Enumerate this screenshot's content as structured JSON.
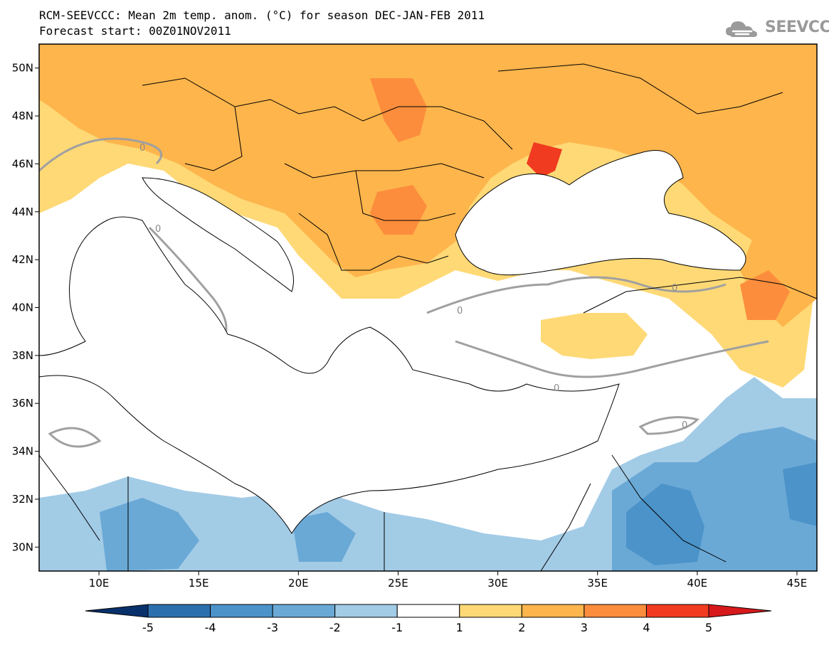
{
  "header": {
    "title_line1": "RCM-SEEVCCC: Mean 2m temp. anom. (°C) for season DEC-JAN-FEB 2011",
    "title_line2": "Forecast start: 00Z01NOV2011",
    "logo_text": "SEEVCCC",
    "logo_icon": "cloud-icon"
  },
  "map": {
    "lat_range": [
      29,
      51
    ],
    "lon_range": [
      7,
      46
    ],
    "lat_labels": [
      "50N",
      "48N",
      "46N",
      "44N",
      "42N",
      "40N",
      "38N",
      "36N",
      "34N",
      "32N",
      "30N"
    ],
    "lat_values": [
      50,
      48,
      46,
      44,
      42,
      40,
      38,
      36,
      34,
      32,
      30
    ],
    "lon_labels": [
      "10E",
      "15E",
      "20E",
      "25E",
      "30E",
      "35E",
      "40E",
      "45E"
    ],
    "lon_values": [
      10,
      15,
      20,
      25,
      30,
      35,
      40,
      45
    ],
    "contour_label": "0",
    "colors": {
      "sea": "#ffffff",
      "coast": "#000000",
      "zero_contour": "#a0a0a0",
      "neutral": "#ffffff"
    }
  },
  "colorbar": {
    "ticks": [
      "-5",
      "-4",
      "-3",
      "-2",
      "-1",
      "1",
      "2",
      "3",
      "4",
      "5"
    ],
    "colors": [
      "#08306b",
      "#2c6fae",
      "#4b93c9",
      "#6aa9d6",
      "#a2cbe6",
      "#ffffff",
      "#fed976",
      "#fdb54c",
      "#fc8d3c",
      "#f03b20",
      "#d7191c"
    ]
  }
}
